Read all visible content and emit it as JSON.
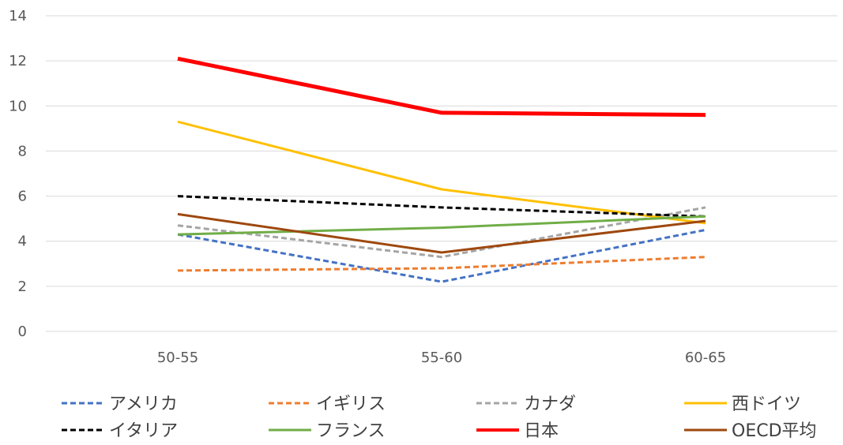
{
  "chart_data": {
    "type": "line",
    "title": "",
    "xlabel": "",
    "ylabel": "",
    "categories": [
      "50-55",
      "55-60",
      "60-65"
    ],
    "ylim": [
      0,
      14
    ],
    "yticks": [
      "0",
      "2",
      "4",
      "6",
      "8",
      "10",
      "12",
      "14"
    ],
    "grid": true,
    "legend_position": "bottom",
    "series": [
      {
        "name": "アメリカ",
        "values": [
          4.3,
          2.2,
          4.5
        ],
        "color": "#4472C4",
        "style": "dashed"
      },
      {
        "name": "イギリス",
        "values": [
          2.7,
          2.8,
          3.3
        ],
        "color": "#ED7D31",
        "style": "dashed"
      },
      {
        "name": "カナダ",
        "values": [
          4.7,
          3.3,
          5.5
        ],
        "color": "#A5A5A5",
        "style": "dashed"
      },
      {
        "name": "西ドイツ",
        "values": [
          9.3,
          6.3,
          4.8
        ],
        "color": "#FFC000",
        "style": "solid"
      },
      {
        "name": "イタリア",
        "values": [
          6.0,
          5.5,
          5.1
        ],
        "color": "#000000",
        "style": "dashed"
      },
      {
        "name": "フランス",
        "values": [
          4.3,
          4.6,
          5.1
        ],
        "color": "#70AD47",
        "style": "solid"
      },
      {
        "name": "日本",
        "values": [
          12.1,
          9.7,
          9.6
        ],
        "color": "#FF0000",
        "style": "thick"
      },
      {
        "name": "OECD平均",
        "values": [
          5.2,
          3.5,
          4.9
        ],
        "color": "#9E480E",
        "style": "solid"
      }
    ]
  }
}
